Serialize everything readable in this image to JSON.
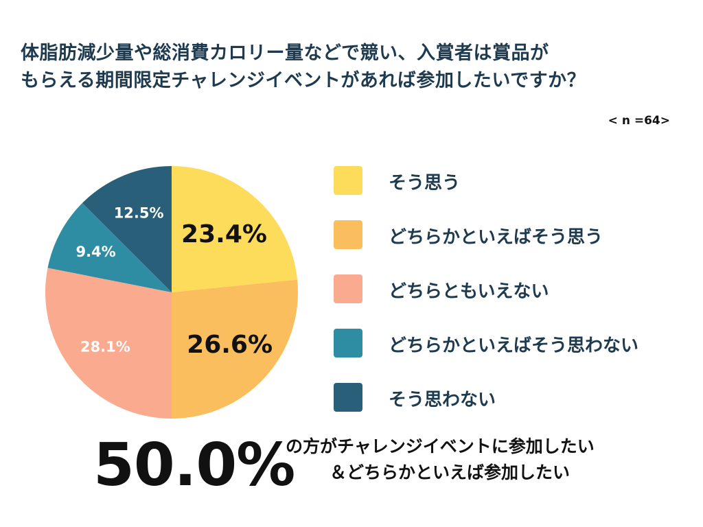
{
  "title": {
    "line1": "体脂肪減少量や総消費カロリー量などで競い、入賞者は賞品が",
    "line2": "もらえる期間限定チャレンジイベントがあれば参加したいですか？"
  },
  "sample_size": "< n =64>",
  "chart_data": {
    "type": "pie",
    "slices": [
      {
        "label": "そう思う",
        "value": 23.4,
        "display": "23.4%",
        "color": "#FDDC5C",
        "label_color": "#111111",
        "label_size": "large"
      },
      {
        "label": "どちらかといえばそう思う",
        "value": 26.6,
        "display": "26.6%",
        "color": "#FBBE5E",
        "label_color": "#111111",
        "label_size": "large"
      },
      {
        "label": "どちらともいえない",
        "value": 28.1,
        "display": "28.1%",
        "color": "#F9AA8F",
        "label_color": "#ffffff",
        "label_size": "small"
      },
      {
        "label": "どちらかといえばそう思わない",
        "value": 9.4,
        "display": "9.4%",
        "color": "#2E8DA3",
        "label_color": "#ffffff",
        "label_size": "small"
      },
      {
        "label": "そう思わない",
        "value": 12.5,
        "display": "12.5%",
        "color": "#2A5F7A",
        "label_color": "#ffffff",
        "label_size": "small"
      }
    ],
    "start": "12 o'clock",
    "direction": "clockwise"
  },
  "summary": {
    "value": "50.0%",
    "line1": "の方がチャレンジイベントに参加したい",
    "line2": "＆どちらかといえば参加したい"
  }
}
